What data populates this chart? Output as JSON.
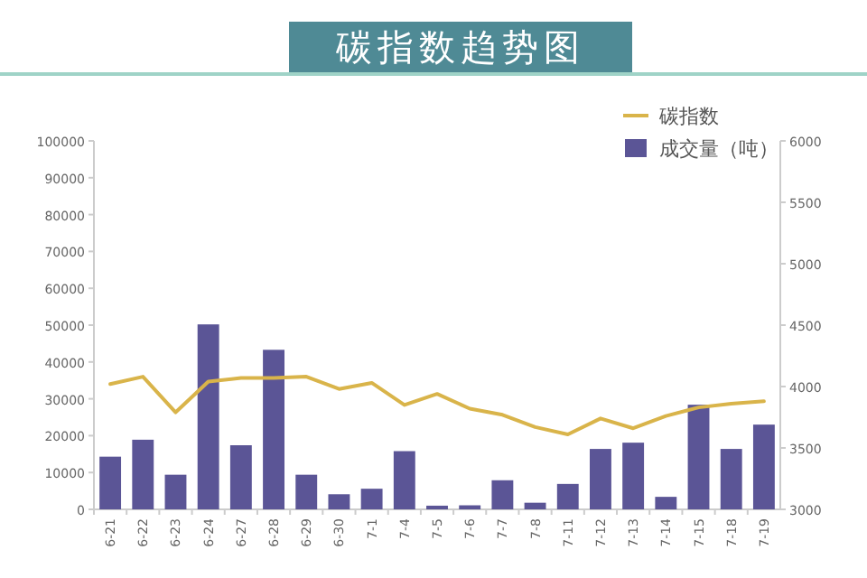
{
  "chart_data": {
    "type": "bar",
    "title": "碳指数趋势图",
    "categories": [
      "6-21",
      "6-22",
      "6-23",
      "6-24",
      "6-27",
      "6-28",
      "6-29",
      "6-30",
      "7-1",
      "7-4",
      "7-5",
      "7-6",
      "7-7",
      "7-8",
      "7-11",
      "7-12",
      "7-13",
      "7-14",
      "7-15",
      "7-18",
      "7-19"
    ],
    "series": [
      {
        "name": "碳指数",
        "type": "line",
        "axis": "y2",
        "color": "#d9b44a",
        "values": [
          4020,
          4080,
          3790,
          4040,
          4070,
          4070,
          4080,
          3980,
          4030,
          3850,
          3940,
          3820,
          3770,
          3670,
          3610,
          3740,
          3660,
          3760,
          3830,
          3860,
          3880
        ]
      },
      {
        "name": "成交量（吨）",
        "color": "#5b5596",
        "values": [
          14300,
          18900,
          9400,
          50200,
          17400,
          43300,
          9400,
          4100,
          5600,
          15800,
          1000,
          1100,
          7900,
          1800,
          6900,
          16400,
          18100,
          3400,
          28400,
          16400,
          23000
        ]
      }
    ],
    "ylim": [
      0,
      100000
    ],
    "yticks": [
      0,
      10000,
      20000,
      30000,
      40000,
      50000,
      60000,
      70000,
      80000,
      90000,
      100000
    ],
    "y2lim": [
      3000,
      6000
    ],
    "y2ticks": [
      3000,
      3500,
      4000,
      4500,
      5000,
      5500,
      6000
    ],
    "legend": "top right",
    "grid": false
  }
}
